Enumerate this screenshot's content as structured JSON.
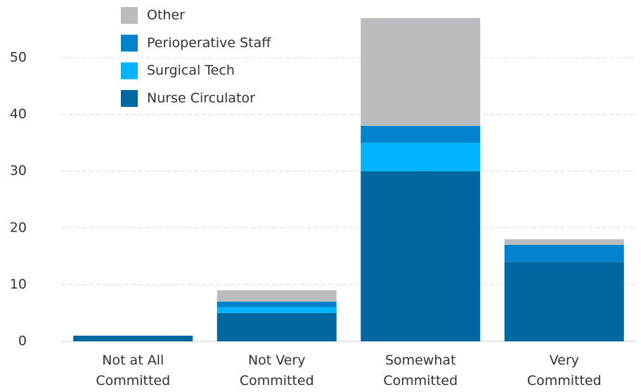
{
  "chart_data": {
    "type": "bar",
    "stacked": true,
    "categories": [
      "Not at All Committed",
      "Not Very Committed",
      "Somewhat Committed",
      "Very Committed"
    ],
    "series": [
      {
        "name": "Nurse Circulator",
        "color": "#0068a0",
        "values": [
          1,
          5,
          30,
          14
        ]
      },
      {
        "name": "Surgical Tech",
        "color": "#00b4ff",
        "values": [
          0,
          1,
          5,
          0
        ]
      },
      {
        "name": "Perioperative Staff",
        "color": "#0082cc",
        "values": [
          0,
          1,
          3,
          3
        ]
      },
      {
        "name": "Other",
        "color": "#bbbcbe",
        "values": [
          0,
          2,
          19,
          1
        ]
      }
    ],
    "ylim": [
      0,
      57
    ],
    "yticks": [
      0,
      10,
      20,
      30,
      40,
      50
    ],
    "grid": true,
    "legend": "top-left"
  }
}
